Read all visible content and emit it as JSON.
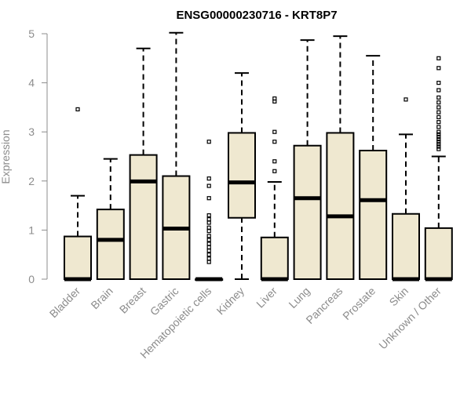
{
  "chart_data": {
    "type": "boxplot",
    "title": "ENSG00000230716 - KRT8P7",
    "xlabel": "",
    "ylabel": "Expression",
    "ylim": [
      0,
      5
    ],
    "yticks": [
      "0",
      "1",
      "2",
      "3",
      "4",
      "5"
    ],
    "grid": false,
    "legend": "none",
    "colors": {
      "box_fill": "#efe8d0",
      "stroke": "#000000",
      "axis": "#8c8c8c",
      "outlier": "#000000"
    },
    "categories": [
      "Bladder",
      "Brain",
      "Breast",
      "Gastric",
      "Hematopoietic cells",
      "Kidney",
      "Liver",
      "Lung",
      "Pancreas",
      "Prostate",
      "Skin",
      "Unknown / Other"
    ],
    "boxes": [
      {
        "min": 0,
        "q1": 0,
        "median": 0,
        "q3": 0.87,
        "max": 1.7,
        "outliers": [
          3.46
        ]
      },
      {
        "min": 0,
        "q1": 0,
        "median": 0.8,
        "q3": 1.42,
        "max": 2.45,
        "outliers": []
      },
      {
        "min": 0,
        "q1": 0,
        "median": 1.99,
        "q3": 2.53,
        "max": 4.7,
        "outliers": []
      },
      {
        "min": 0,
        "q1": 0,
        "median": 1.03,
        "q3": 2.1,
        "max": 5.02,
        "outliers": []
      },
      {
        "min": 0,
        "q1": 0,
        "median": 0,
        "q3": 0,
        "max": 0,
        "outliers": [
          2.8,
          2.05,
          1.9,
          1.65,
          1.3,
          1.22,
          1.15,
          1.05,
          0.98,
          0.88,
          0.8,
          0.72,
          0.65,
          0.58,
          0.5,
          0.42,
          0.35
        ]
      },
      {
        "min": 0,
        "q1": 1.25,
        "median": 1.97,
        "q3": 2.98,
        "max": 4.2,
        "outliers": []
      },
      {
        "min": 0,
        "q1": 0,
        "median": 0,
        "q3": 0.85,
        "max": 1.98,
        "outliers": [
          3.68,
          3.62,
          3.0,
          2.8,
          2.4,
          2.2
        ]
      },
      {
        "min": 0,
        "q1": 0,
        "median": 1.65,
        "q3": 2.72,
        "max": 4.87,
        "outliers": []
      },
      {
        "min": 0,
        "q1": 0,
        "median": 1.28,
        "q3": 2.98,
        "max": 4.95,
        "outliers": []
      },
      {
        "min": 0,
        "q1": 0,
        "median": 1.61,
        "q3": 2.62,
        "max": 4.55,
        "outliers": []
      },
      {
        "min": 0,
        "q1": 0,
        "median": 0,
        "q3": 1.33,
        "max": 2.95,
        "outliers": [
          3.66
        ]
      },
      {
        "min": 0,
        "q1": 0,
        "median": 0,
        "q3": 1.04,
        "max": 2.5,
        "outliers": [
          4.5,
          4.3,
          4.0,
          3.85,
          3.7,
          3.6,
          3.5,
          3.4,
          3.3,
          3.2,
          3.1,
          3.0,
          2.95,
          2.9,
          2.85,
          2.8,
          2.75,
          2.7,
          2.65
        ]
      }
    ]
  }
}
